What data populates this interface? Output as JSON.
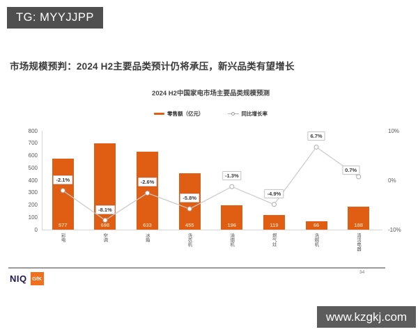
{
  "watermarks": {
    "top": "TG: MYYJJPP",
    "bottom": "www.kzgkj.com"
  },
  "slide": {
    "title": "市场规模预判：2024 H2主要品类预计仍将承压，新兴品类有望增长"
  },
  "footer": {
    "niq": "NIQ",
    "gfk": "GfK",
    "page_number": "34"
  },
  "colors": {
    "bar_orange": "#E05E14",
    "bar_value_text": "#F5C9A0",
    "line_gray": "#C9C9C9",
    "marker_stroke": "#ADADAD",
    "badge_gray": "#4F4F4F",
    "niq_navy": "#201751",
    "gfk_orange": "#F0701E",
    "axis_text": "#595959"
  },
  "chart_data": {
    "type": "bar",
    "combo": "bar+line",
    "title": "2024 H2中国家电市场主要品类规模预测",
    "categories": [
      "彩电",
      "空调",
      "冰箱",
      "洗衣机",
      "油烟机",
      "燃气灶",
      "洗碗机",
      "清洁电器"
    ],
    "series": [
      {
        "name": "零售额（亿元）",
        "type": "bar",
        "axis": "left",
        "values": [
          577,
          698,
          633,
          455,
          196,
          119,
          66,
          188
        ],
        "color": "#E05E14"
      },
      {
        "name": "同比增长率",
        "type": "line",
        "axis": "right",
        "values": [
          -2.1,
          -8.1,
          -2.6,
          -5.8,
          -1.3,
          -4.9,
          6.7,
          0.7
        ],
        "labels": [
          "-2.1%",
          "-8.1%",
          "-2.6%",
          "-5.8%",
          "-1.3%",
          "-4.9%",
          "6.7%",
          "0.7%"
        ],
        "color": "#C9C9C9"
      }
    ],
    "left_axis": {
      "min": 0,
      "max": 800,
      "ticks": [
        "0",
        "100",
        "200",
        "300",
        "400",
        "500",
        "600",
        "700",
        "800"
      ]
    },
    "right_axis": {
      "min": -10,
      "max": 10,
      "ticks": [
        "-10%",
        "0%",
        "10%"
      ]
    },
    "legend_position": "top-center",
    "grid": "off"
  }
}
